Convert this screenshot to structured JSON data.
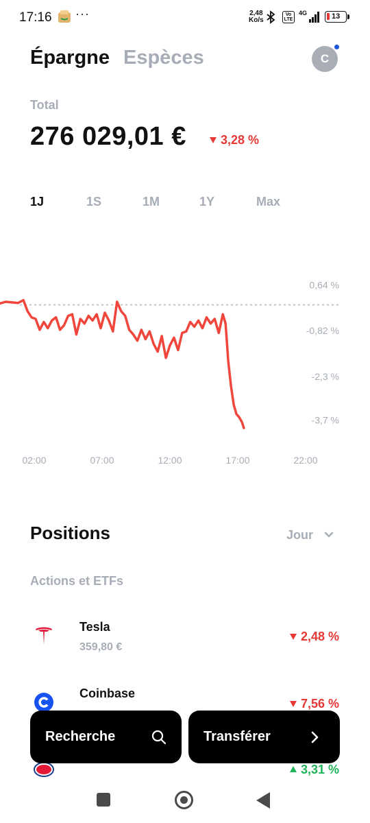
{
  "status_bar": {
    "time": "17:16",
    "dots": "···",
    "net_speed_value": "2,48",
    "net_speed_unit": "Ko/s",
    "volte": "Vo LTE",
    "network": "4G",
    "battery": "13"
  },
  "header": {
    "tab_active": "Épargne",
    "tab_inactive": "Espèces",
    "avatar_initial": "C"
  },
  "summary": {
    "total_label": "Total",
    "total_value": "276 029,01 €",
    "change": "3,28 %",
    "change_direction": "down"
  },
  "ranges": [
    "1J",
    "1S",
    "1M",
    "1Y",
    "Max"
  ],
  "active_range": "1J",
  "chart_data": {
    "type": "line",
    "series": [
      {
        "x": [
          0.0,
          0.4,
          0.8,
          1.2,
          1.5,
          1.8,
          2.1,
          2.4,
          2.7,
          3.0,
          3.3,
          3.6,
          3.9,
          4.2,
          4.5,
          4.8,
          5.1,
          5.4,
          5.7,
          6.0,
          6.3,
          6.6,
          6.9,
          7.2,
          7.5,
          7.8,
          8.1,
          8.4,
          8.7,
          9.0,
          9.3,
          9.6,
          9.9,
          10.2,
          10.5,
          10.8,
          11.1,
          11.4,
          11.7,
          12.0,
          12.3,
          12.6,
          12.9,
          13.2,
          13.5,
          13.8,
          14.1,
          14.4,
          14.7,
          15.0,
          15.3,
          15.6,
          15.9,
          16.1,
          16.3,
          16.5,
          16.7,
          16.9,
          17.1,
          17.3,
          17.45
        ],
        "y": [
          0.05,
          0.1,
          0.06,
          0.15,
          -0.2,
          -0.4,
          -0.45,
          -0.8,
          -0.55,
          -0.75,
          -0.5,
          -0.4,
          -0.8,
          -0.65,
          -0.35,
          -0.3,
          -0.95,
          -0.45,
          -0.6,
          -0.35,
          -0.5,
          -0.3,
          -0.75,
          -0.25,
          -0.5,
          -0.85,
          0.1,
          -0.2,
          -0.35,
          -0.8,
          -0.95,
          -1.15,
          -0.8,
          -1.1,
          -0.85,
          -1.25,
          -1.5,
          -1.0,
          -1.7,
          -1.3,
          -1.05,
          -1.45,
          -0.9,
          -0.85,
          -0.55,
          -0.7,
          -0.5,
          -0.75,
          -0.4,
          -0.6,
          -0.45,
          -0.9,
          -0.3,
          -0.6,
          -1.8,
          -2.6,
          -3.2,
          -3.5,
          -3.6,
          -3.75,
          -3.95
        ]
      }
    ],
    "xlim": [
      0,
      24
    ],
    "ylim": [
      -4.3,
      1.2
    ],
    "x_tick_values": [
      2,
      7,
      12,
      17,
      22
    ],
    "x_tick_labels": [
      "02:00",
      "07:00",
      "12:00",
      "17:00",
      "22:00"
    ],
    "y_tick_values": [
      0.64,
      -0.82,
      -2.3,
      -3.7
    ],
    "y_tick_labels": [
      "0,64 %",
      "-0,82 %",
      "-2,3 %",
      "-3,7 %"
    ],
    "reference_value": 0,
    "line_color": "#f0463c",
    "reference_color": "#c9ccd1",
    "grid": false
  },
  "positions": {
    "title": "Positions",
    "period": "Jour",
    "section": "Actions et ETFs",
    "items": [
      {
        "name": "Tesla",
        "price": "359,80 €",
        "change": "2,48 %",
        "direction": "down",
        "logo": "tesla-logo"
      },
      {
        "name": "Coinbase",
        "price": "",
        "change": "7,56 %",
        "direction": "down",
        "logo": "coinbase-logo"
      },
      {
        "name": "",
        "price": "",
        "change": "3,31 %",
        "direction": "up",
        "logo": "esso-logo"
      }
    ]
  },
  "actions": {
    "search_label": "Recherche",
    "transfer_label": "Transférer"
  },
  "colors": {
    "negative": "#e53935",
    "positive": "#1fb35a",
    "muted": "#a7adb6",
    "accent_dot": "#1a56db"
  }
}
